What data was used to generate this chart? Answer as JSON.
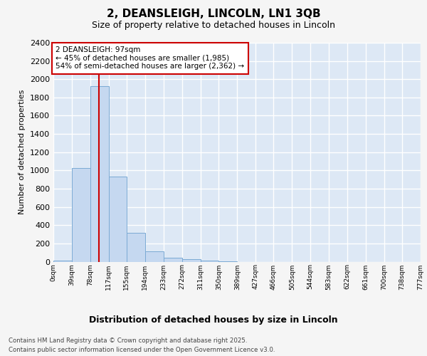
{
  "title1": "2, DEANSLEIGH, LINCOLN, LN1 3QB",
  "title2": "Size of property relative to detached houses in Lincoln",
  "xlabel": "Distribution of detached houses by size in Lincoln",
  "ylabel": "Number of detached properties",
  "bin_edges": [
    0,
    39,
    78,
    117,
    155,
    194,
    233,
    272,
    311,
    350,
    389,
    427,
    466,
    505,
    544,
    583,
    622,
    661,
    700,
    738,
    777
  ],
  "bin_labels": [
    "0sqm",
    "39sqm",
    "78sqm",
    "117sqm",
    "155sqm",
    "194sqm",
    "233sqm",
    "272sqm",
    "311sqm",
    "350sqm",
    "389sqm",
    "427sqm",
    "466sqm",
    "505sqm",
    "544sqm",
    "583sqm",
    "622sqm",
    "661sqm",
    "700sqm",
    "738sqm",
    "777sqm"
  ],
  "bar_heights": [
    15,
    1025,
    1925,
    935,
    315,
    110,
    45,
    25,
    15,
    5,
    0,
    0,
    0,
    0,
    0,
    0,
    0,
    0,
    0,
    0
  ],
  "bar_color": "#c5d8f0",
  "bar_edge_color": "#7baad4",
  "property_size": 97,
  "annotation_text": "2 DEANSLEIGH: 97sqm\n← 45% of detached houses are smaller (1,985)\n54% of semi-detached houses are larger (2,362) →",
  "annotation_box_color": "#ffffff",
  "annotation_box_edge_color": "#cc0000",
  "vline_color": "#cc0000",
  "ylim": [
    0,
    2400
  ],
  "yticks": [
    0,
    200,
    400,
    600,
    800,
    1000,
    1200,
    1400,
    1600,
    1800,
    2000,
    2200,
    2400
  ],
  "footer1": "Contains HM Land Registry data © Crown copyright and database right 2025.",
  "footer2": "Contains public sector information licensed under the Open Government Licence v3.0.",
  "fig_bg_color": "#f5f5f5",
  "plot_bg_color": "#dde8f5",
  "grid_color": "#ffffff"
}
